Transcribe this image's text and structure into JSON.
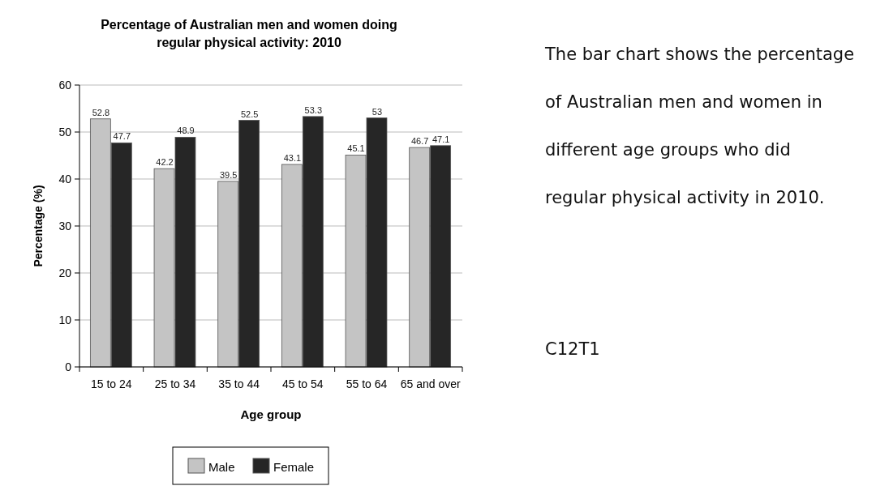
{
  "chart_data": {
    "type": "bar",
    "title": "Percentage of Australian men and women doing\nregular physical activity: 2010",
    "xlabel": "Age group",
    "ylabel": "Percentage (%)",
    "categories": [
      "15 to 24",
      "25 to 34",
      "35 to 44",
      "45 to 54",
      "55 to 64",
      "65 and over"
    ],
    "series": [
      {
        "name": "Male",
        "color": "#c4c4c4",
        "values": [
          52.8,
          42.2,
          39.5,
          43.1,
          45.1,
          46.7
        ]
      },
      {
        "name": "Female",
        "color": "#262626",
        "values": [
          47.7,
          48.9,
          52.5,
          53.3,
          53,
          47.1
        ]
      }
    ],
    "ylim": [
      0,
      60
    ],
    "yticks": [
      0,
      10,
      20,
      30,
      40,
      50,
      60
    ],
    "grid": "y",
    "legend": "bottom",
    "data_labels": true,
    "annotations": [
      "The bar chart shows the percentage of Australian men and women in different age groups who did regular physical activity in 2010.",
      "C12T1"
    ]
  }
}
